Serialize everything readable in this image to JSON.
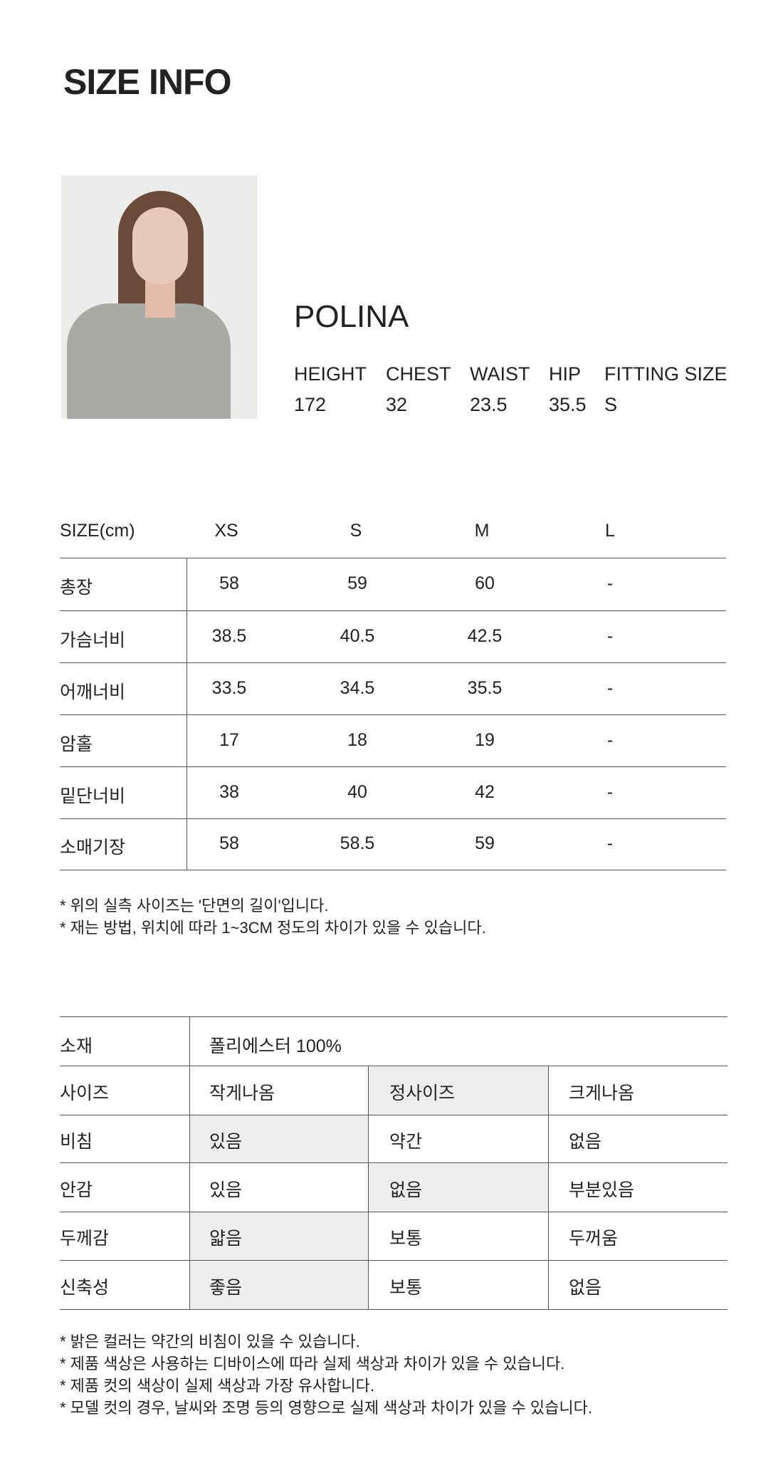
{
  "title": "SIZE INFO",
  "model": {
    "name": "POLINA",
    "headers": [
      "HEIGHT",
      "CHEST",
      "WAIST",
      "HIP",
      "FITTING SIZE"
    ],
    "values": [
      "172",
      "32",
      "23.5",
      "35.5",
      "S"
    ]
  },
  "size_table": {
    "header": [
      "SIZE(cm)",
      "XS",
      "S",
      "M",
      "L"
    ],
    "rows": [
      [
        "총장",
        "58",
        "59",
        "60",
        "-"
      ],
      [
        "가슴너비",
        "38.5",
        "40.5",
        "42.5",
        "-"
      ],
      [
        "어깨너비",
        "33.5",
        "34.5",
        "35.5",
        "-"
      ],
      [
        "암홀",
        "17",
        "18",
        "19",
        "-"
      ],
      [
        "밑단너비",
        "38",
        "40",
        "42",
        "-"
      ],
      [
        "소매기장",
        "58",
        "58.5",
        "59",
        "-"
      ]
    ],
    "notes": [
      "* 위의 실측 사이즈는 '단면의 길이'입니다.",
      "* 재는 방법, 위치에 따라 1~3CM 정도의 차이가 있을 수 있습니다."
    ]
  },
  "fabric_table": {
    "material_label": "소재",
    "material_value": "폴리에스터 100%",
    "highlight_color": "#eeeeee",
    "rows": [
      {
        "label": "사이즈",
        "options": [
          "작게나옴",
          "정사이즈",
          "크게나옴"
        ],
        "selected": 1
      },
      {
        "label": "비침",
        "options": [
          "있음",
          "약간",
          "없음"
        ],
        "selected": 0
      },
      {
        "label": "안감",
        "options": [
          "있음",
          "없음",
          "부분있음"
        ],
        "selected": 1
      },
      {
        "label": "두께감",
        "options": [
          "얇음",
          "보통",
          "두꺼움"
        ],
        "selected": 0
      },
      {
        "label": "신축성",
        "options": [
          "좋음",
          "보통",
          "없음"
        ],
        "selected": 0
      }
    ],
    "notes": [
      "* 밝은 컬러는 약간의 비침이 있을 수 있습니다.",
      "* 제품 색상은 사용하는 디바이스에 따라 실제 색상과 차이가 있을 수 있습니다.",
      "* 제품 컷의 색상이 실제 색상과 가장 유사합니다.",
      "* 모델 컷의 경우, 날씨와 조명 등의 영향으로 실제 색상과 차이가 있을 수 있습니다."
    ]
  }
}
